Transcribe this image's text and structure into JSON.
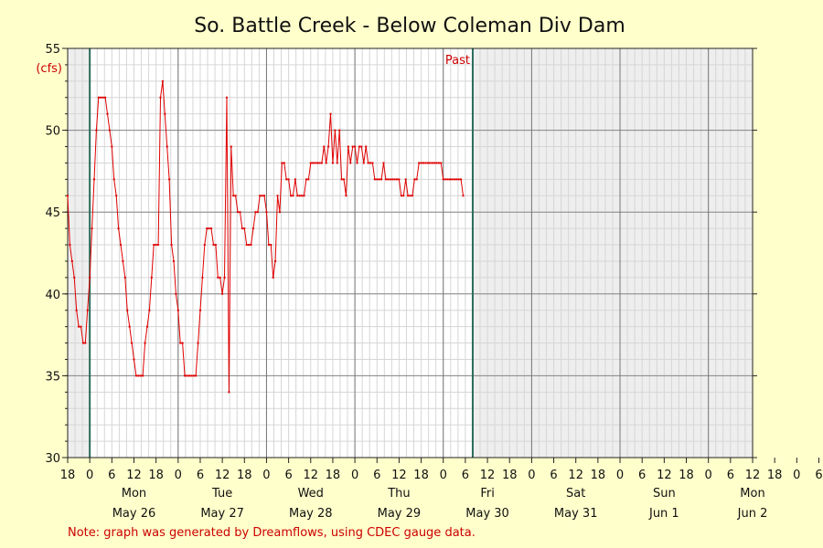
{
  "chart_data": {
    "type": "line",
    "title": "So. Battle Creek - Below Coleman Div Dam",
    "ylabel": "(cfs)",
    "ylim": [
      30,
      55
    ],
    "yticks": [
      30,
      35,
      40,
      45,
      50,
      55
    ],
    "x_unit": "hours since 18:00 May 25",
    "xlim": [
      0,
      186
    ],
    "hour_tick_labels": [
      "18",
      "0",
      "6",
      "12",
      "18",
      "0",
      "6",
      "12",
      "18",
      "0",
      "6",
      "12",
      "18",
      "0",
      "6",
      "12",
      "18",
      "0",
      "6",
      "12",
      "18",
      "0",
      "6",
      "12",
      "18",
      "0",
      "6",
      "12",
      "18",
      "0",
      "6",
      "12",
      "18",
      "0",
      "6",
      "12"
    ],
    "days": [
      {
        "weekday": "Mon",
        "date": "May 26"
      },
      {
        "weekday": "Tue",
        "date": "May 27"
      },
      {
        "weekday": "Wed",
        "date": "May 28"
      },
      {
        "weekday": "Thu",
        "date": "May 29"
      },
      {
        "weekday": "Fri",
        "date": "May 30"
      },
      {
        "weekday": "Sat",
        "date": "May 31"
      },
      {
        "weekday": "Sun",
        "date": "Jun 1"
      },
      {
        "weekday": "Mon",
        "date": "Jun 2"
      }
    ],
    "past_label": "Past",
    "grid": true,
    "series": [
      {
        "name": "",
        "color": "#e00000",
        "points": [
          [
            0,
            46
          ],
          [
            0.6,
            43
          ],
          [
            1.2,
            42
          ],
          [
            1.8,
            41
          ],
          [
            2.4,
            39
          ],
          [
            3,
            38
          ],
          [
            3.6,
            38
          ],
          [
            4.2,
            37
          ],
          [
            4.8,
            37
          ],
          [
            5.4,
            39
          ],
          [
            6,
            41
          ],
          [
            6.6,
            44
          ],
          [
            7.2,
            47
          ],
          [
            7.8,
            50
          ],
          [
            8.4,
            52
          ],
          [
            9,
            52
          ],
          [
            9.6,
            52
          ],
          [
            10.2,
            52
          ],
          [
            10.8,
            51
          ],
          [
            11.4,
            50
          ],
          [
            12,
            49
          ],
          [
            12.6,
            47
          ],
          [
            13.2,
            46
          ],
          [
            13.8,
            44
          ],
          [
            14.4,
            43
          ],
          [
            15,
            42
          ],
          [
            15.6,
            41
          ],
          [
            16.2,
            39
          ],
          [
            16.8,
            38
          ],
          [
            17.4,
            37
          ],
          [
            18,
            36
          ],
          [
            18.6,
            35
          ],
          [
            19.2,
            35
          ],
          [
            19.8,
            35
          ],
          [
            20.4,
            35
          ],
          [
            21,
            37
          ],
          [
            21.6,
            38
          ],
          [
            22.2,
            39
          ],
          [
            22.8,
            41
          ],
          [
            23.4,
            43
          ],
          [
            24,
            43
          ],
          [
            24.6,
            43
          ],
          [
            25.2,
            52
          ],
          [
            25.8,
            53
          ],
          [
            26.4,
            51
          ],
          [
            27,
            49
          ],
          [
            27.6,
            47
          ],
          [
            28.2,
            43
          ],
          [
            28.8,
            42
          ],
          [
            29.4,
            40
          ],
          [
            30,
            39
          ],
          [
            30.6,
            37
          ],
          [
            31.2,
            37
          ],
          [
            31.8,
            35
          ],
          [
            32.4,
            35
          ],
          [
            33,
            35
          ],
          [
            33.6,
            35
          ],
          [
            34.2,
            35
          ],
          [
            34.8,
            35
          ],
          [
            35.4,
            37
          ],
          [
            36,
            39
          ],
          [
            36.6,
            41
          ],
          [
            37.2,
            43
          ],
          [
            37.8,
            44
          ],
          [
            38.4,
            44
          ],
          [
            39,
            44
          ],
          [
            39.6,
            43
          ],
          [
            40.2,
            43
          ],
          [
            40.8,
            41
          ],
          [
            41.4,
            41
          ],
          [
            42,
            40
          ],
          [
            42.6,
            41
          ],
          [
            43.2,
            52
          ],
          [
            43.8,
            34
          ],
          [
            44.4,
            49
          ],
          [
            45,
            46
          ],
          [
            45.6,
            46
          ],
          [
            46.2,
            45
          ],
          [
            46.8,
            45
          ],
          [
            47.4,
            44
          ],
          [
            48,
            44
          ],
          [
            48.6,
            43
          ],
          [
            49.2,
            43
          ],
          [
            49.8,
            43
          ],
          [
            50.4,
            44
          ],
          [
            51,
            45
          ],
          [
            51.6,
            45
          ],
          [
            52.2,
            46
          ],
          [
            52.8,
            46
          ],
          [
            53.4,
            46
          ],
          [
            54,
            45
          ],
          [
            54.6,
            43
          ],
          [
            55.2,
            43
          ],
          [
            55.8,
            41
          ],
          [
            56.4,
            42
          ],
          [
            57,
            46
          ],
          [
            57.6,
            45
          ],
          [
            58.2,
            48
          ],
          [
            58.8,
            48
          ],
          [
            59.4,
            47
          ],
          [
            60,
            47
          ],
          [
            60.6,
            46
          ],
          [
            61.2,
            46
          ],
          [
            61.8,
            47
          ],
          [
            62.4,
            46
          ],
          [
            63,
            46
          ],
          [
            63.6,
            46
          ],
          [
            64.2,
            46
          ],
          [
            64.8,
            47
          ],
          [
            65.4,
            47
          ],
          [
            66,
            48
          ],
          [
            66.6,
            48
          ],
          [
            67.2,
            48
          ],
          [
            67.8,
            48
          ],
          [
            68.4,
            48
          ],
          [
            69,
            48
          ],
          [
            69.6,
            49
          ],
          [
            70.2,
            48
          ],
          [
            70.8,
            49
          ],
          [
            71.4,
            51
          ],
          [
            72,
            48
          ],
          [
            72.6,
            50
          ],
          [
            73.2,
            48
          ],
          [
            73.8,
            50
          ],
          [
            74.4,
            47
          ],
          [
            75,
            47
          ],
          [
            75.6,
            46
          ],
          [
            76.2,
            49
          ],
          [
            76.8,
            48
          ],
          [
            77.4,
            49
          ],
          [
            78,
            49
          ],
          [
            78.6,
            48
          ],
          [
            79.2,
            49
          ],
          [
            79.8,
            49
          ],
          [
            80.4,
            48
          ],
          [
            81,
            49
          ],
          [
            81.6,
            48
          ],
          [
            82.2,
            48
          ],
          [
            82.8,
            48
          ],
          [
            83.4,
            47
          ],
          [
            84,
            47
          ],
          [
            84.6,
            47
          ],
          [
            85.2,
            47
          ],
          [
            85.8,
            48
          ],
          [
            86.4,
            47
          ],
          [
            87,
            47
          ],
          [
            87.6,
            47
          ],
          [
            88.2,
            47
          ],
          [
            88.8,
            47
          ],
          [
            89.4,
            47
          ],
          [
            90,
            47
          ],
          [
            90.6,
            46
          ],
          [
            91.2,
            46
          ],
          [
            91.8,
            47
          ],
          [
            92.4,
            46
          ],
          [
            93,
            46
          ],
          [
            93.6,
            46
          ],
          [
            94.2,
            47
          ],
          [
            94.8,
            47
          ],
          [
            95.4,
            48
          ],
          [
            96,
            48
          ],
          [
            96.6,
            48
          ],
          [
            97.2,
            48
          ],
          [
            97.8,
            48
          ],
          [
            98.4,
            48
          ],
          [
            99,
            48
          ],
          [
            99.6,
            48
          ],
          [
            100.2,
            48
          ],
          [
            100.8,
            48
          ],
          [
            101.4,
            48
          ],
          [
            102,
            47
          ],
          [
            102.6,
            47
          ],
          [
            103.2,
            47
          ],
          [
            103.8,
            47
          ],
          [
            104.4,
            47
          ],
          [
            105,
            47
          ],
          [
            105.6,
            47
          ],
          [
            106.2,
            47
          ],
          [
            106.8,
            47
          ],
          [
            107.4,
            46
          ]
        ]
      }
    ],
    "note": "Note: graph was generated by Dreamflows, using CDEC gauge data."
  }
}
